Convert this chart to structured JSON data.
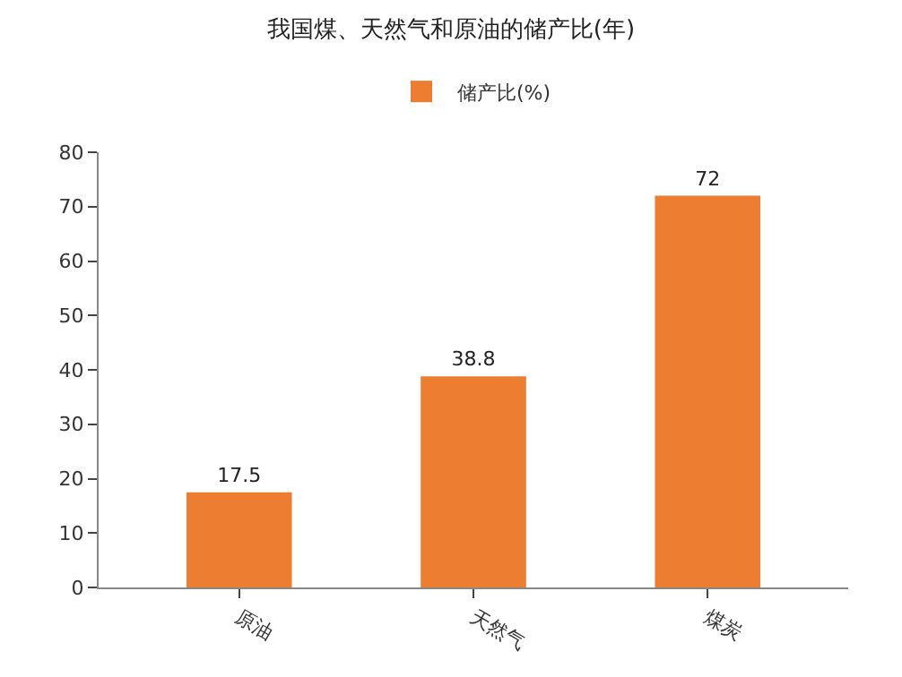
{
  "chart_data": {
    "type": "bar",
    "title": "我国煤、天然气和原油的储产比(年)",
    "categories": [
      "原油",
      "天然气",
      "煤炭"
    ],
    "series": [
      {
        "name": "储产比(%)",
        "color": "#ed7d31",
        "values": [
          17.5,
          38.8,
          72
        ]
      }
    ],
    "ylim": [
      0,
      80
    ],
    "yticks": [
      0,
      10,
      20,
      30,
      40,
      50,
      60,
      70,
      80
    ],
    "grid": false,
    "legend": "top",
    "data_labels": true
  }
}
